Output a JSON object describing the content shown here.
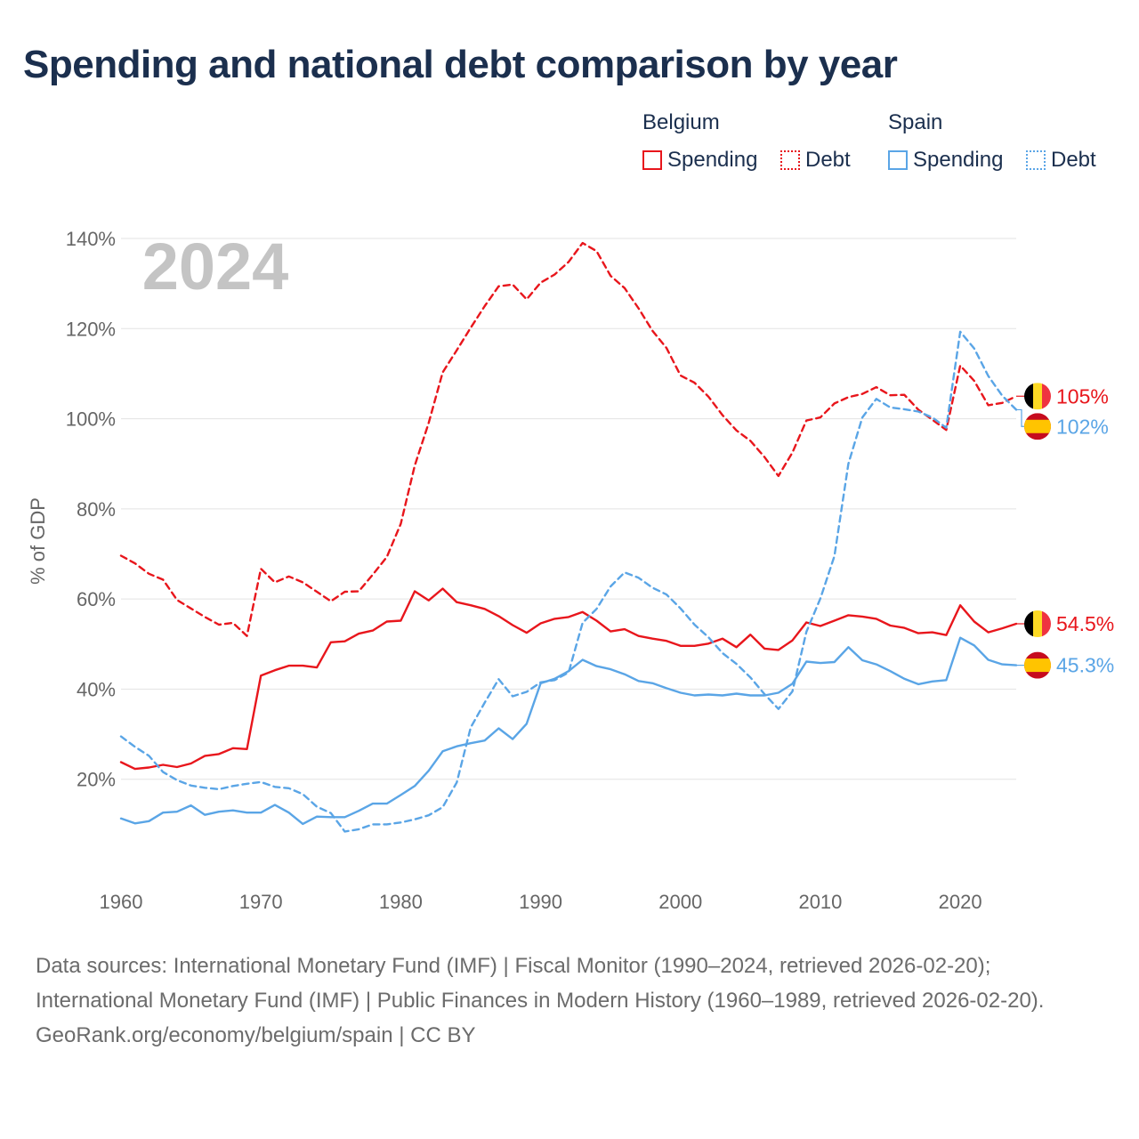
{
  "title": "Spending and national debt comparison by year",
  "legend": {
    "groups": [
      {
        "name": "Belgium",
        "color": "#e8161c",
        "items": [
          {
            "label": "Spending",
            "style": "solid"
          },
          {
            "label": "Debt",
            "style": "dotted"
          }
        ]
      },
      {
        "name": "Spain",
        "color": "#5aa5e6",
        "items": [
          {
            "label": "Spending",
            "style": "solid"
          },
          {
            "label": "Debt",
            "style": "dotted"
          }
        ]
      }
    ]
  },
  "footer": {
    "sources": "Data sources: International Monetary Fund (IMF) | Fiscal Monitor (1990–2024, retrieved 2026-02-20); International Monetary Fund (IMF) | Public Finances in Modern History (1960–1989, retrieved 2026-02-20).",
    "credit": "GeoRank.org/economy/belgium/spain | CC BY"
  },
  "chart_data": {
    "type": "line",
    "title": "Spending and national debt comparison by year",
    "year_label": "2024",
    "xlabel": "",
    "ylabel": "% of GDP",
    "xlim": [
      1960,
      2024
    ],
    "ylim": [
      0,
      140
    ],
    "xticks": [
      1960,
      1970,
      1980,
      1990,
      2000,
      2010,
      2020
    ],
    "yticks": [
      20,
      40,
      60,
      80,
      100,
      120,
      140
    ],
    "ytick_labels": [
      "20%",
      "40%",
      "60%",
      "80%",
      "100%",
      "120%",
      "140%"
    ],
    "grid": true,
    "x": [
      1960,
      1961,
      1962,
      1963,
      1964,
      1965,
      1966,
      1967,
      1968,
      1969,
      1970,
      1971,
      1972,
      1973,
      1974,
      1975,
      1976,
      1977,
      1978,
      1979,
      1980,
      1981,
      1982,
      1983,
      1984,
      1985,
      1986,
      1987,
      1988,
      1989,
      1990,
      1991,
      1992,
      1993,
      1994,
      1995,
      1996,
      1997,
      1998,
      1999,
      2000,
      2001,
      2002,
      2003,
      2004,
      2005,
      2006,
      2007,
      2008,
      2009,
      2010,
      2011,
      2012,
      2013,
      2014,
      2015,
      2016,
      2017,
      2018,
      2019,
      2020,
      2021,
      2022,
      2023,
      2024
    ],
    "series": [
      {
        "name": "Belgium Spending",
        "country": "Belgium",
        "metric": "Spending",
        "color": "#e8161c",
        "dash": "solid",
        "end_label": "54.5%",
        "flag": "belgium",
        "values": [
          23.8,
          22.3,
          22.6,
          23.2,
          22.7,
          23.5,
          25.2,
          25.6,
          26.9,
          26.7,
          43.0,
          44.2,
          45.2,
          45.2,
          44.8,
          50.4,
          50.6,
          52.3,
          53.0,
          55.0,
          55.2,
          61.7,
          59.7,
          62.3,
          59.3,
          58.6,
          57.8,
          56.2,
          54.2,
          52.5,
          54.6,
          55.6,
          56.0,
          57.1,
          55.2,
          52.8,
          53.3,
          51.8,
          51.2,
          50.7,
          49.6,
          49.6,
          50.1,
          51.2,
          49.3,
          52.1,
          49.0,
          48.7,
          50.8,
          54.8,
          54.0,
          55.2,
          56.4,
          56.1,
          55.6,
          54.1,
          53.6,
          52.4,
          52.6,
          52.0,
          58.6,
          55.0,
          52.6,
          53.5,
          54.5
        ]
      },
      {
        "name": "Belgium Debt",
        "country": "Belgium",
        "metric": "Debt",
        "color": "#e8161c",
        "dash": "dashed",
        "end_label": "105%",
        "flag": "belgium",
        "values": [
          69.6,
          67.9,
          65.6,
          64.3,
          59.8,
          57.9,
          56.0,
          54.3,
          54.7,
          51.8,
          66.7,
          63.7,
          65.0,
          63.7,
          61.6,
          59.5,
          61.6,
          61.7,
          65.4,
          69.3,
          76.7,
          89.6,
          99.1,
          110.3,
          115.2,
          120.2,
          125.0,
          129.4,
          129.8,
          126.5,
          130.2,
          132.0,
          134.8,
          139.0,
          137.2,
          131.7,
          129.0,
          124.5,
          119.5,
          115.7,
          109.6,
          108.0,
          104.9,
          100.8,
          97.4,
          95.1,
          91.5,
          87.3,
          92.5,
          99.6,
          100.3,
          103.4,
          104.8,
          105.5,
          107.0,
          105.2,
          105.3,
          102.0,
          99.8,
          97.5,
          111.8,
          108.4,
          103.0,
          103.5,
          105.0
        ]
      },
      {
        "name": "Spain Spending",
        "country": "Spain",
        "metric": "Spending",
        "color": "#5aa5e6",
        "dash": "solid",
        "end_label": "45.3%",
        "flag": "spain",
        "values": [
          11.3,
          10.2,
          10.7,
          12.6,
          12.8,
          14.2,
          12.1,
          12.8,
          13.1,
          12.6,
          12.6,
          14.3,
          12.6,
          10.1,
          11.7,
          11.6,
          11.6,
          13.0,
          14.6,
          14.6,
          16.5,
          18.5,
          21.9,
          26.2,
          27.3,
          28.0,
          28.6,
          31.3,
          28.9,
          32.3,
          41.3,
          42.3,
          44.0,
          46.5,
          45.1,
          44.4,
          43.3,
          41.8,
          41.3,
          40.2,
          39.2,
          38.6,
          38.8,
          38.6,
          39.0,
          38.6,
          38.6,
          39.2,
          41.2,
          46.1,
          45.8,
          46.0,
          49.3,
          46.4,
          45.5,
          44.0,
          42.3,
          41.1,
          41.7,
          42.0,
          51.4,
          49.7,
          46.5,
          45.5,
          45.3
        ]
      },
      {
        "name": "Spain Debt",
        "country": "Spain",
        "metric": "Debt",
        "color": "#5aa5e6",
        "dash": "dashed",
        "end_label": "102%",
        "flag": "spain",
        "values": [
          29.5,
          27.2,
          25.2,
          21.6,
          19.8,
          18.6,
          18.1,
          17.8,
          18.5,
          19.0,
          19.4,
          18.3,
          18.0,
          16.7,
          13.9,
          12.5,
          8.4,
          8.9,
          10.0,
          10.0,
          10.4,
          11.1,
          12.0,
          13.8,
          19.3,
          31.5,
          37.0,
          42.2,
          38.4,
          39.4,
          41.5,
          42.0,
          43.7,
          54.7,
          57.8,
          62.8,
          65.9,
          64.7,
          62.5,
          61.0,
          57.9,
          54.3,
          51.5,
          48.0,
          45.6,
          42.6,
          38.9,
          35.6,
          39.5,
          52.7,
          60.1,
          69.5,
          90.0,
          100.3,
          104.4,
          102.5,
          102.1,
          101.6,
          100.3,
          98.0,
          119.3,
          115.6,
          109.5,
          105.1,
          102.0
        ]
      }
    ]
  }
}
